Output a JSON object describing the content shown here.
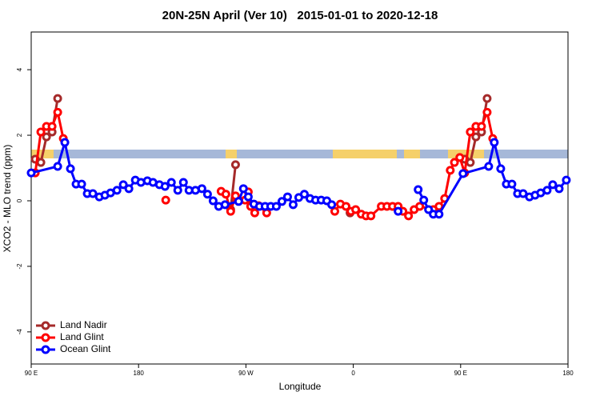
{
  "chart_data": {
    "type": "line",
    "title": "20N-25N April (Ver 10)   2015-01-01 to 2020-12-18",
    "x_label": "Longitude",
    "y_label": "XCO2 - MLO trend (ppm)",
    "xlim": [
      90,
      540
    ],
    "xticks": [
      {
        "value": 90,
        "label": "90 E"
      },
      {
        "value": 180,
        "label": "180"
      },
      {
        "value": 270,
        "label": "90 W"
      },
      {
        "value": 360,
        "label": "0"
      },
      {
        "value": 450,
        "label": "90 E"
      },
      {
        "value": 540,
        "label": "180"
      }
    ],
    "ylim": [
      -4.98,
      5.15
    ],
    "yticks": [
      -4,
      -2,
      0,
      2,
      4
    ],
    "legend": "bottom-left",
    "series": [
      {
        "name": "Land Nadir",
        "color": "#a52a2a",
        "x": [
          93.4,
          98.1,
          102.8,
          107.5,
          112.2,
          null,
          257.2,
          261.3,
          null,
          357.3,
          null,
          453.4,
          458.1,
          462.8,
          467.5,
          472.2
        ],
        "values": [
          1.27,
          1.17,
          1.95,
          2.1,
          3.12,
          null,
          -0.27,
          1.1,
          null,
          -0.37,
          null,
          1.27,
          1.17,
          1.95,
          2.1,
          3.12
        ]
      },
      {
        "name": "Land Glint",
        "color": "#ff0000",
        "x": [
          93.4,
          98.1,
          102.8,
          107.5,
          112.2,
          116.9,
          null,
          202.8,
          null,
          249.2,
          253.2,
          257.2,
          261.3,
          269.3,
          272,
          274,
          277.4,
          280.7,
          287.4,
          null,
          344.5,
          349.2,
          353.9,
          358,
          362,
          366.7,
          370.7,
          374.8,
          383.5,
          388.2,
          392.9,
          397.6,
          401.6,
          406.3,
          411,
          415.7,
          427.1,
          431.9,
          436.6,
          441.3,
          444.8,
          449.3,
          453.4,
          458.1,
          462.8,
          467.5,
          472.2,
          476.9
        ],
        "values": [
          0.85,
          2.1,
          2.27,
          2.27,
          2.7,
          1.9,
          null,
          0.02,
          null,
          0.29,
          0.2,
          -0.32,
          0.15,
          0.02,
          0.27,
          -0.17,
          -0.37,
          -0.15,
          -0.37,
          null,
          -0.32,
          -0.1,
          -0.17,
          -0.32,
          -0.27,
          -0.41,
          -0.46,
          -0.46,
          -0.17,
          -0.17,
          -0.17,
          -0.17,
          -0.32,
          -0.46,
          -0.27,
          -0.17,
          -0.27,
          -0.17,
          0.07,
          0.93,
          1.17,
          1.32,
          0.85,
          2.1,
          2.27,
          2.27,
          2.7,
          1.9
        ]
      },
      {
        "name": "Ocean Glint",
        "color": "#0000ff",
        "x": [
          90,
          112.2,
          118.2,
          122.9,
          127.6,
          132.3,
          137,
          141.7,
          147.1,
          151.8,
          156.5,
          161.9,
          167.2,
          171.9,
          177.3,
          182,
          187.4,
          192.1,
          197.5,
          202.2,
          207.5,
          212.9,
          217.6,
          222.3,
          227.7,
          233.1,
          237.8,
          242.5,
          247.2,
          252.5,
          263.9,
          267.9,
          272,
          276.7,
          281.4,
          286.1,
          290.8,
          295.5,
          300.2,
          304.9,
          309.6,
          314.3,
          319,
          323.7,
          328.4,
          333.1,
          337.8,
          341.9,
          null,
          397.6,
          null,
          414.4,
          419.1,
          423.1,
          427.1,
          431.9,
          452,
          473.5,
          478.2,
          483.6,
          488.3,
          493,
          497.7,
          502.4,
          507.7,
          512.4,
          517.1,
          522.5,
          527.2,
          532.6,
          538.6
        ],
        "values": [
          0.85,
          1.05,
          1.78,
          0.98,
          0.51,
          0.51,
          0.22,
          0.22,
          0.12,
          0.17,
          0.24,
          0.32,
          0.49,
          0.37,
          0.63,
          0.56,
          0.61,
          0.56,
          0.49,
          0.44,
          0.56,
          0.32,
          0.56,
          0.32,
          0.32,
          0.37,
          0.2,
          0,
          -0.17,
          -0.12,
          -0.02,
          0.37,
          0.12,
          -0.1,
          -0.17,
          -0.17,
          -0.17,
          -0.17,
          -0.02,
          0.12,
          -0.12,
          0.1,
          0.2,
          0.07,
          0.02,
          0.02,
          0,
          -0.12,
          null,
          -0.32,
          null,
          0.34,
          0.02,
          -0.27,
          -0.41,
          -0.41,
          0.83,
          1.05,
          1.78,
          0.98,
          0.51,
          0.51,
          0.22,
          0.22,
          0.12,
          0.17,
          0.24,
          0.32,
          0.49,
          0.37,
          0.63
        ]
      }
    ]
  }
}
